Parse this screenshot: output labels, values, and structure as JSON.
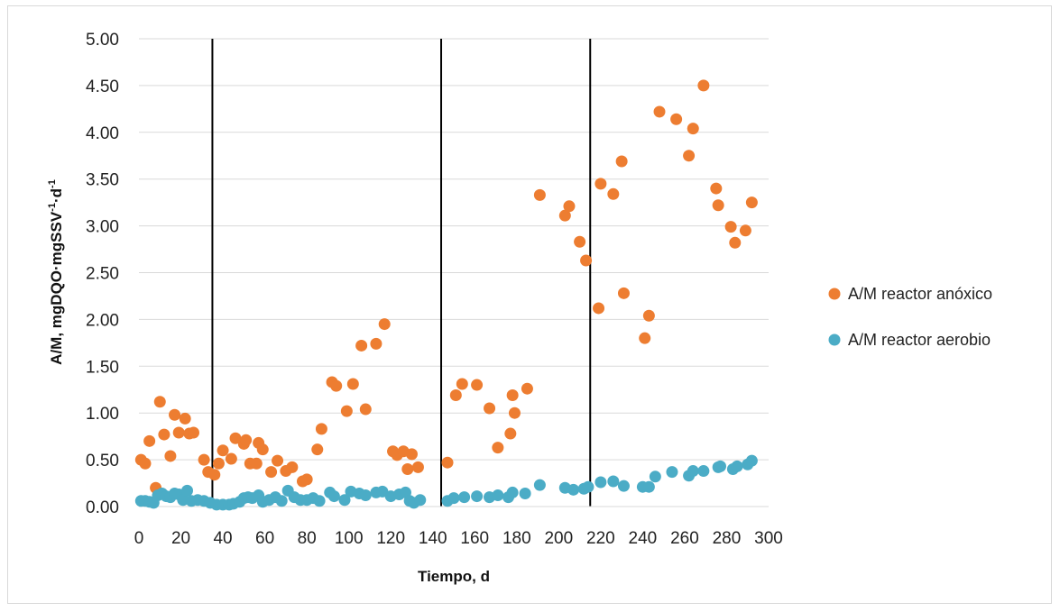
{
  "chart_data": {
    "type": "scatter",
    "title": "",
    "xlabel": "Tiempo, d",
    "ylabel": {
      "main": "A/M, mgDQO·mgSSV",
      "sup1": "-1",
      "mid": "·d",
      "sup2": "-1"
    },
    "xlim": [
      0,
      300
    ],
    "ylim": [
      0,
      5
    ],
    "x_ticks": [
      "0",
      "20",
      "40",
      "60",
      "80",
      "100",
      "120",
      "140",
      "160",
      "180",
      "200",
      "220",
      "240",
      "260",
      "280",
      "300"
    ],
    "y_ticks": [
      "0.00",
      "0.50",
      "1.00",
      "1.50",
      "2.00",
      "2.50",
      "3.00",
      "3.50",
      "4.00",
      "4.50",
      "5.00"
    ],
    "grid": "horizontal",
    "legend_position": "right",
    "vertical_lines_x": [
      35,
      144,
      215
    ],
    "series": [
      {
        "name": "A/M reactor anóxico",
        "color": "#ED7D31",
        "points": [
          [
            1,
            0.5
          ],
          [
            3,
            0.46
          ],
          [
            5,
            0.7
          ],
          [
            8,
            0.2
          ],
          [
            10,
            1.12
          ],
          [
            12,
            0.77
          ],
          [
            15,
            0.54
          ],
          [
            17,
            0.98
          ],
          [
            19,
            0.79
          ],
          [
            22,
            0.94
          ],
          [
            24,
            0.78
          ],
          [
            26,
            0.79
          ],
          [
            31,
            0.5
          ],
          [
            33,
            0.37
          ],
          [
            36,
            0.34
          ],
          [
            38,
            0.46
          ],
          [
            40,
            0.6
          ],
          [
            44,
            0.51
          ],
          [
            46,
            0.73
          ],
          [
            50,
            0.67
          ],
          [
            51,
            0.71
          ],
          [
            53,
            0.46
          ],
          [
            56,
            0.46
          ],
          [
            57,
            0.68
          ],
          [
            59,
            0.61
          ],
          [
            63,
            0.37
          ],
          [
            66,
            0.49
          ],
          [
            70,
            0.38
          ],
          [
            73,
            0.42
          ],
          [
            78,
            0.27
          ],
          [
            80,
            0.29
          ],
          [
            85,
            0.61
          ],
          [
            87,
            0.83
          ],
          [
            92,
            1.33
          ],
          [
            94,
            1.29
          ],
          [
            99,
            1.02
          ],
          [
            102,
            1.31
          ],
          [
            106,
            1.72
          ],
          [
            108,
            1.04
          ],
          [
            113,
            1.74
          ],
          [
            117,
            1.95
          ],
          [
            121,
            0.59
          ],
          [
            123,
            0.55
          ],
          [
            126,
            0.59
          ],
          [
            128,
            0.4
          ],
          [
            130,
            0.56
          ],
          [
            133,
            0.42
          ],
          [
            147,
            0.47
          ],
          [
            151,
            1.19
          ],
          [
            154,
            1.31
          ],
          [
            161,
            1.3
          ],
          [
            167,
            1.05
          ],
          [
            171,
            0.63
          ],
          [
            177,
            0.78
          ],
          [
            178,
            1.19
          ],
          [
            179,
            1.0
          ],
          [
            185,
            1.26
          ],
          [
            191,
            3.33
          ],
          [
            203,
            3.11
          ],
          [
            205,
            3.21
          ],
          [
            210,
            2.83
          ],
          [
            213,
            2.63
          ],
          [
            219,
            2.12
          ],
          [
            220,
            3.45
          ],
          [
            226,
            3.34
          ],
          [
            230,
            3.69
          ],
          [
            231,
            2.28
          ],
          [
            241,
            1.8
          ],
          [
            243,
            2.04
          ],
          [
            248,
            4.22
          ],
          [
            256,
            4.14
          ],
          [
            262,
            3.75
          ],
          [
            264,
            4.04
          ],
          [
            269,
            4.5
          ],
          [
            275,
            3.4
          ],
          [
            276,
            3.22
          ],
          [
            282,
            2.99
          ],
          [
            284,
            2.82
          ],
          [
            289,
            2.95
          ],
          [
            292,
            3.25
          ]
        ]
      },
      {
        "name": "A/M reactor aerobio",
        "color": "#4BACC6",
        "points": [
          [
            1,
            0.06
          ],
          [
            3,
            0.06
          ],
          [
            5,
            0.05
          ],
          [
            7,
            0.04
          ],
          [
            9,
            0.12
          ],
          [
            11,
            0.14
          ],
          [
            13,
            0.11
          ],
          [
            15,
            0.1
          ],
          [
            17,
            0.14
          ],
          [
            19,
            0.13
          ],
          [
            21,
            0.07
          ],
          [
            23,
            0.17
          ],
          [
            25,
            0.06
          ],
          [
            28,
            0.07
          ],
          [
            31,
            0.06
          ],
          [
            34,
            0.04
          ],
          [
            37,
            0.02
          ],
          [
            40,
            0.02
          ],
          [
            43,
            0.02
          ],
          [
            45,
            0.03
          ],
          [
            48,
            0.05
          ],
          [
            50,
            0.09
          ],
          [
            52,
            0.1
          ],
          [
            54,
            0.09
          ],
          [
            57,
            0.12
          ],
          [
            59,
            0.05
          ],
          [
            62,
            0.07
          ],
          [
            65,
            0.1
          ],
          [
            68,
            0.06
          ],
          [
            71,
            0.17
          ],
          [
            74,
            0.1
          ],
          [
            77,
            0.07
          ],
          [
            80,
            0.07
          ],
          [
            83,
            0.09
          ],
          [
            86,
            0.06
          ],
          [
            91,
            0.15
          ],
          [
            93,
            0.11
          ],
          [
            98,
            0.07
          ],
          [
            101,
            0.16
          ],
          [
            105,
            0.14
          ],
          [
            108,
            0.12
          ],
          [
            113,
            0.15
          ],
          [
            116,
            0.16
          ],
          [
            120,
            0.11
          ],
          [
            124,
            0.13
          ],
          [
            127,
            0.15
          ],
          [
            129,
            0.06
          ],
          [
            131,
            0.04
          ],
          [
            134,
            0.07
          ],
          [
            147,
            0.06
          ],
          [
            150,
            0.09
          ],
          [
            155,
            0.1
          ],
          [
            161,
            0.11
          ],
          [
            167,
            0.1
          ],
          [
            171,
            0.12
          ],
          [
            176,
            0.1
          ],
          [
            178,
            0.15
          ],
          [
            184,
            0.14
          ],
          [
            191,
            0.23
          ],
          [
            203,
            0.2
          ],
          [
            207,
            0.18
          ],
          [
            212,
            0.19
          ],
          [
            214,
            0.21
          ],
          [
            220,
            0.26
          ],
          [
            226,
            0.27
          ],
          [
            231,
            0.22
          ],
          [
            240,
            0.21
          ],
          [
            243,
            0.21
          ],
          [
            246,
            0.32
          ],
          [
            254,
            0.37
          ],
          [
            262,
            0.33
          ],
          [
            264,
            0.38
          ],
          [
            269,
            0.38
          ],
          [
            276,
            0.42
          ],
          [
            277,
            0.43
          ],
          [
            283,
            0.4
          ],
          [
            285,
            0.43
          ],
          [
            290,
            0.45
          ],
          [
            292,
            0.49
          ]
        ]
      }
    ]
  }
}
